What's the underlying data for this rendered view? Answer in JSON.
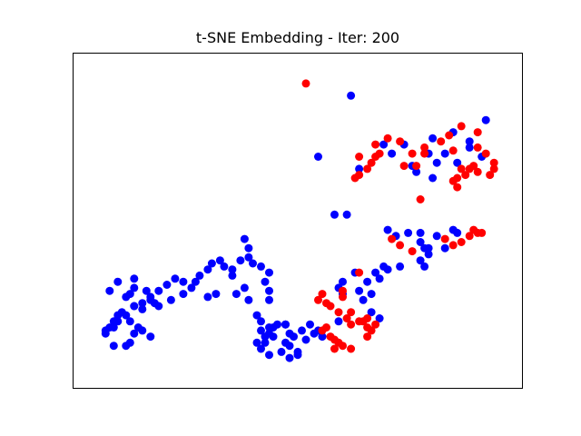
{
  "chart_data": {
    "type": "scatter",
    "title": "t-SNE Embedding - Iter: 200",
    "xlabel": "",
    "ylabel": "",
    "axes_ticks": false,
    "grid": false,
    "xlim": [
      0,
      100
    ],
    "ylim": [
      0,
      100
    ],
    "series": [
      {
        "color": "#0000ff",
        "points": [
          [
            63,
            91
          ],
          [
            71,
            75
          ],
          [
            76,
            75
          ],
          [
            83,
            77
          ],
          [
            88,
            79
          ],
          [
            92,
            76
          ],
          [
            82,
            72
          ],
          [
            84,
            69
          ],
          [
            65,
            67
          ],
          [
            73,
            72
          ],
          [
            78,
            68
          ],
          [
            86,
            72
          ],
          [
            79,
            66
          ],
          [
            83,
            64
          ],
          [
            89,
            69
          ],
          [
            92,
            74
          ],
          [
            95,
            71
          ],
          [
            96,
            83
          ],
          [
            55,
            71
          ],
          [
            59,
            52
          ],
          [
            62,
            52
          ],
          [
            72,
            47
          ],
          [
            74,
            45
          ],
          [
            77,
            46
          ],
          [
            80,
            46
          ],
          [
            84,
            45
          ],
          [
            88,
            47
          ],
          [
            89,
            46
          ],
          [
            80,
            43
          ],
          [
            82,
            41
          ],
          [
            86,
            41
          ],
          [
            64,
            33
          ],
          [
            69,
            33
          ],
          [
            71,
            35
          ],
          [
            72,
            34
          ],
          [
            70,
            31
          ],
          [
            67,
            30
          ],
          [
            75,
            35
          ],
          [
            81,
            35
          ],
          [
            80,
            37
          ],
          [
            82,
            39
          ],
          [
            81,
            41
          ],
          [
            65,
            27
          ],
          [
            66,
            24
          ],
          [
            68,
            26
          ],
          [
            68,
            20
          ],
          [
            70,
            18
          ],
          [
            61,
            26
          ],
          [
            60,
            28
          ],
          [
            61,
            30
          ],
          [
            60,
            17
          ],
          [
            55,
            14
          ],
          [
            56,
            12
          ],
          [
            51,
            14
          ],
          [
            53,
            16
          ],
          [
            54,
            13
          ],
          [
            47,
            10
          ],
          [
            44,
            15
          ],
          [
            43,
            13
          ],
          [
            42,
            12
          ],
          [
            42,
            10
          ],
          [
            40,
            10
          ],
          [
            41,
            14
          ],
          [
            41,
            17
          ],
          [
            40,
            19
          ],
          [
            44,
            12
          ],
          [
            43,
            15
          ],
          [
            45,
            16
          ],
          [
            47,
            16
          ],
          [
            49,
            12
          ],
          [
            48,
            9
          ],
          [
            46,
            7
          ],
          [
            43,
            6
          ],
          [
            41,
            8
          ],
          [
            50,
            6
          ],
          [
            48,
            5
          ],
          [
            50,
            7
          ],
          [
            52,
            11
          ],
          [
            48,
            13
          ],
          [
            47,
            16
          ],
          [
            9,
            17
          ],
          [
            11,
            15
          ],
          [
            14,
            12
          ],
          [
            12,
            14
          ],
          [
            10,
            13
          ],
          [
            9,
            10
          ],
          [
            8,
            9
          ],
          [
            5,
            9
          ],
          [
            3,
            13
          ],
          [
            4,
            15
          ],
          [
            6,
            19
          ],
          [
            7,
            20
          ],
          [
            10,
            22
          ],
          [
            12,
            23
          ],
          [
            14,
            24
          ],
          [
            16,
            22
          ],
          [
            19,
            24
          ],
          [
            22,
            26
          ],
          [
            24,
            28
          ],
          [
            25,
            30
          ],
          [
            26,
            32
          ],
          [
            28,
            34
          ],
          [
            29,
            36
          ],
          [
            31,
            37
          ],
          [
            32,
            35
          ],
          [
            34,
            34
          ],
          [
            36,
            37
          ],
          [
            37,
            44
          ],
          [
            38,
            41
          ],
          [
            38,
            38
          ],
          [
            39,
            36
          ],
          [
            41,
            35
          ],
          [
            43,
            33
          ],
          [
            42,
            30
          ],
          [
            43,
            27
          ],
          [
            43,
            24
          ],
          [
            38,
            24
          ],
          [
            37,
            28
          ],
          [
            34,
            32
          ],
          [
            35,
            26
          ],
          [
            30,
            26
          ],
          [
            28,
            25
          ],
          [
            22,
            30
          ],
          [
            20,
            31
          ],
          [
            18,
            29
          ],
          [
            16,
            27
          ],
          [
            14,
            25
          ],
          [
            13,
            27
          ],
          [
            15,
            23
          ],
          [
            12,
            21
          ],
          [
            10,
            22
          ],
          [
            8,
            19
          ],
          [
            6,
            17
          ],
          [
            5,
            15
          ],
          [
            3,
            14
          ],
          [
            5,
            17
          ],
          [
            8,
            25
          ],
          [
            4,
            27
          ],
          [
            6,
            30
          ],
          [
            9,
            26
          ],
          [
            10,
            28
          ],
          [
            10,
            31
          ]
        ]
      },
      {
        "color": "#ff0000",
        "points": [
          [
            52,
            95
          ],
          [
            64,
            64
          ],
          [
            65,
            65
          ],
          [
            67,
            67
          ],
          [
            68,
            69
          ],
          [
            69,
            71
          ],
          [
            65,
            71
          ],
          [
            70,
            72
          ],
          [
            69,
            75
          ],
          [
            72,
            77
          ],
          [
            75,
            76
          ],
          [
            76,
            68
          ],
          [
            79,
            68
          ],
          [
            78,
            72
          ],
          [
            81,
            72
          ],
          [
            85,
            76
          ],
          [
            81,
            74
          ],
          [
            88,
            73
          ],
          [
            87,
            78
          ],
          [
            90,
            81
          ],
          [
            94,
            79
          ],
          [
            94,
            74
          ],
          [
            89,
            64
          ],
          [
            90,
            67
          ],
          [
            92,
            67
          ],
          [
            93,
            68
          ],
          [
            94,
            66
          ],
          [
            96,
            72
          ],
          [
            97,
            65
          ],
          [
            98,
            67
          ],
          [
            98,
            69
          ],
          [
            88,
            63
          ],
          [
            91,
            65
          ],
          [
            89,
            61
          ],
          [
            80,
            57
          ],
          [
            90,
            43
          ],
          [
            88,
            42
          ],
          [
            93,
            47
          ],
          [
            94,
            46
          ],
          [
            92,
            45
          ],
          [
            95,
            46
          ],
          [
            86,
            44
          ],
          [
            78,
            40
          ],
          [
            75,
            42
          ],
          [
            73,
            44
          ],
          [
            65,
            33
          ],
          [
            55,
            24
          ],
          [
            57,
            23
          ],
          [
            56,
            26
          ],
          [
            61,
            25
          ],
          [
            61,
            27
          ],
          [
            58,
            22
          ],
          [
            60,
            20
          ],
          [
            63,
            20
          ],
          [
            62,
            18
          ],
          [
            63,
            16
          ],
          [
            65,
            17
          ],
          [
            66,
            17
          ],
          [
            67,
            18
          ],
          [
            69,
            16
          ],
          [
            56,
            14
          ],
          [
            57,
            15
          ],
          [
            58,
            12
          ],
          [
            59,
            11
          ],
          [
            60,
            10
          ],
          [
            61,
            9
          ],
          [
            59,
            8
          ],
          [
            63,
            8
          ],
          [
            67,
            15
          ],
          [
            68,
            14
          ],
          [
            67,
            12
          ]
        ]
      }
    ]
  }
}
